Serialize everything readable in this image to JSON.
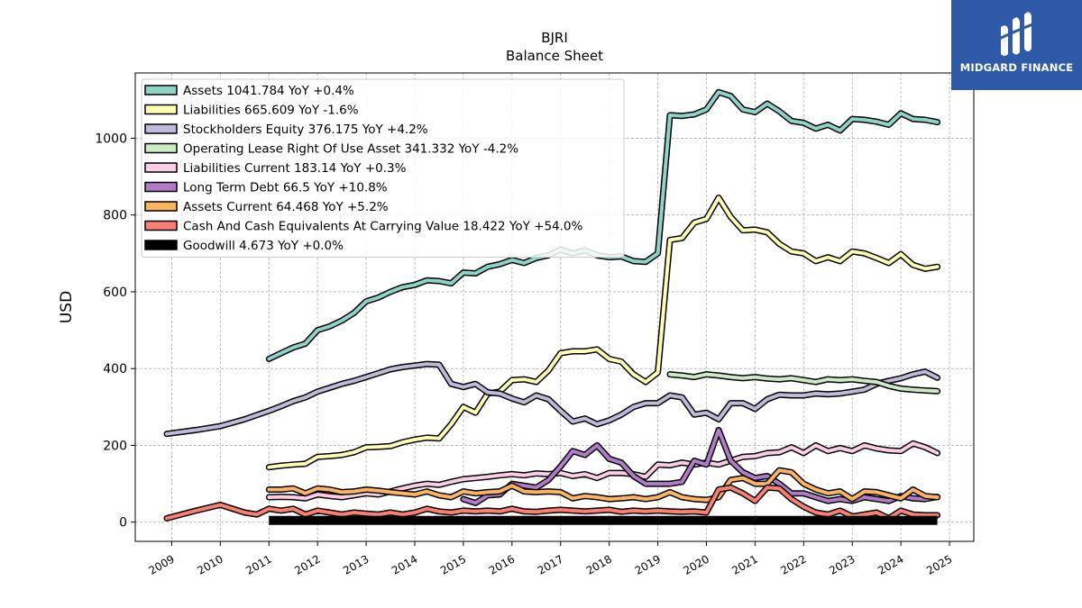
{
  "title": "BJRI",
  "subtitle": "Balance  Sheet",
  "logo_text": "MIDGARD FINANCE",
  "chart_data": {
    "type": "line",
    "title": "BJRI",
    "subtitle": "Balance  Sheet",
    "xlabel": "",
    "ylabel": "USD",
    "xlim": [
      2008.25,
      2025.5
    ],
    "ylim": [
      -50,
      1170
    ],
    "yticks": [
      0,
      200,
      400,
      600,
      800,
      1000
    ],
    "xticks": [
      2009,
      2010,
      2011,
      2012,
      2013,
      2014,
      2015,
      2016,
      2017,
      2018,
      2019,
      2020,
      2021,
      2022,
      2023,
      2024,
      2025
    ],
    "grid": true,
    "legend_position": "top-left",
    "series": [
      {
        "name": "Assets",
        "legend": "Assets  1041.784 YoY +0.4%",
        "color": "#8dd3c7",
        "x": [
          2011.0,
          2011.25,
          2011.5,
          2011.75,
          2012.0,
          2012.25,
          2012.5,
          2012.75,
          2013.0,
          2013.25,
          2013.5,
          2013.75,
          2014.0,
          2014.25,
          2014.5,
          2014.75,
          2015.0,
          2015.25,
          2015.5,
          2015.75,
          2016.0,
          2016.25,
          2016.5,
          2016.75,
          2017.0,
          2017.25,
          2017.5,
          2017.75,
          2018.0,
          2018.25,
          2018.5,
          2018.75,
          2019.0,
          2019.25,
          2019.5,
          2019.75,
          2020.0,
          2020.25,
          2020.5,
          2020.75,
          2021.0,
          2021.25,
          2021.5,
          2021.75,
          2022.0,
          2022.25,
          2022.5,
          2022.75,
          2023.0,
          2023.25,
          2023.5,
          2023.75,
          2024.0,
          2024.25,
          2024.5,
          2024.75
        ],
        "y": [
          425,
          440,
          455,
          465,
          500,
          510,
          525,
          545,
          575,
          585,
          600,
          612,
          618,
          630,
          628,
          622,
          650,
          648,
          665,
          672,
          683,
          675,
          688,
          695,
          710,
          700,
          708,
          695,
          690,
          692,
          680,
          678,
          700,
          1060,
          1058,
          1062,
          1075,
          1120,
          1110,
          1075,
          1068,
          1090,
          1070,
          1045,
          1040,
          1025,
          1035,
          1020,
          1050,
          1048,
          1043,
          1035,
          1065,
          1050,
          1048,
          1042
        ]
      },
      {
        "name": "Liabilities",
        "legend": "Liabilities  665.609 YoY -1.6%",
        "color": "#ffffb3",
        "x": [
          2011.0,
          2011.25,
          2011.5,
          2011.75,
          2012.0,
          2012.25,
          2012.5,
          2012.75,
          2013.0,
          2013.25,
          2013.5,
          2013.75,
          2014.0,
          2014.25,
          2014.5,
          2014.75,
          2015.0,
          2015.25,
          2015.5,
          2015.75,
          2016.0,
          2016.25,
          2016.5,
          2016.75,
          2017.0,
          2017.25,
          2017.5,
          2017.75,
          2018.0,
          2018.25,
          2018.5,
          2018.75,
          2019.0,
          2019.25,
          2019.5,
          2019.75,
          2020.0,
          2020.25,
          2020.5,
          2020.75,
          2021.0,
          2021.25,
          2021.5,
          2021.75,
          2022.0,
          2022.25,
          2022.5,
          2022.75,
          2023.0,
          2023.25,
          2023.5,
          2023.75,
          2024.0,
          2024.25,
          2024.5,
          2024.75
        ],
        "y": [
          143,
          147,
          150,
          152,
          170,
          172,
          175,
          182,
          195,
          196,
          198,
          208,
          215,
          220,
          218,
          255,
          300,
          285,
          335,
          340,
          370,
          372,
          365,
          395,
          440,
          445,
          445,
          450,
          425,
          418,
          385,
          365,
          390,
          735,
          740,
          780,
          790,
          845,
          795,
          760,
          762,
          755,
          725,
          705,
          700,
          680,
          690,
          680,
          705,
          700,
          688,
          675,
          698,
          670,
          660,
          665
        ]
      },
      {
        "name": "Stockholders Equity",
        "legend": "Stockholders Equity  376.175 YoY +4.2%",
        "color": "#bebada",
        "x": [
          2008.9,
          2009.5,
          2010.0,
          2010.5,
          2011.0,
          2011.25,
          2011.5,
          2011.75,
          2012.0,
          2012.25,
          2012.5,
          2012.75,
          2013.0,
          2013.25,
          2013.5,
          2013.75,
          2014.0,
          2014.25,
          2014.5,
          2014.75,
          2015.0,
          2015.25,
          2015.5,
          2015.75,
          2016.0,
          2016.25,
          2016.5,
          2016.75,
          2017.0,
          2017.25,
          2017.5,
          2017.75,
          2018.0,
          2018.25,
          2018.5,
          2018.75,
          2019.0,
          2019.25,
          2019.5,
          2019.75,
          2020.0,
          2020.25,
          2020.5,
          2020.75,
          2021.0,
          2021.25,
          2021.5,
          2021.75,
          2022.0,
          2022.25,
          2022.5,
          2022.75,
          2023.0,
          2023.25,
          2023.5,
          2023.75,
          2024.0,
          2024.25,
          2024.5,
          2024.75
        ],
        "y": [
          230,
          240,
          250,
          268,
          290,
          302,
          315,
          325,
          340,
          350,
          360,
          368,
          378,
          388,
          398,
          404,
          408,
          412,
          410,
          360,
          352,
          360,
          338,
          335,
          322,
          312,
          330,
          320,
          290,
          262,
          270,
          255,
          265,
          280,
          300,
          310,
          310,
          330,
          325,
          280,
          285,
          268,
          310,
          310,
          295,
          320,
          332,
          330,
          330,
          335,
          333,
          335,
          340,
          345,
          360,
          368,
          375,
          385,
          392,
          376
        ]
      },
      {
        "name": "Operating Lease Right Of Use Asset",
        "legend": "Operating Lease Right Of Use Asset  341.332 YoY -4.2%",
        "color": "#ccebc5",
        "x": [
          2019.25,
          2019.5,
          2019.75,
          2020.0,
          2020.25,
          2020.5,
          2020.75,
          2021.0,
          2021.25,
          2021.5,
          2021.75,
          2022.0,
          2022.25,
          2022.5,
          2022.75,
          2023.0,
          2023.25,
          2023.5,
          2023.75,
          2024.0,
          2024.25,
          2024.5,
          2024.75
        ],
        "y": [
          385,
          382,
          378,
          385,
          382,
          378,
          375,
          378,
          374,
          372,
          375,
          370,
          365,
          372,
          370,
          372,
          368,
          365,
          355,
          348,
          345,
          343,
          341
        ]
      },
      {
        "name": "Liabilities Current",
        "legend": "Liabilities Current  183.14 YoY +0.3%",
        "color": "#fccde5",
        "x": [
          2011.0,
          2011.25,
          2011.5,
          2011.75,
          2012.0,
          2012.25,
          2012.5,
          2012.75,
          2013.0,
          2013.25,
          2013.5,
          2013.75,
          2014.0,
          2014.25,
          2014.5,
          2014.75,
          2015.0,
          2015.25,
          2015.5,
          2015.75,
          2016.0,
          2016.25,
          2016.5,
          2016.75,
          2017.0,
          2017.25,
          2017.5,
          2017.75,
          2018.0,
          2018.25,
          2018.5,
          2018.75,
          2019.0,
          2019.25,
          2019.5,
          2019.75,
          2020.0,
          2020.25,
          2020.5,
          2020.75,
          2021.0,
          2021.25,
          2021.5,
          2021.75,
          2022.0,
          2022.25,
          2022.5,
          2022.75,
          2023.0,
          2023.25,
          2023.5,
          2023.75,
          2024.0,
          2024.25,
          2024.5,
          2024.75
        ],
        "y": [
          65,
          66,
          65,
          62,
          72,
          68,
          65,
          70,
          75,
          72,
          80,
          88,
          95,
          100,
          97,
          105,
          112,
          115,
          118,
          122,
          125,
          122,
          127,
          125,
          128,
          120,
          125,
          115,
          128,
          128,
          125,
          118,
          150,
          148,
          155,
          150,
          155,
          150,
          160,
          170,
          172,
          180,
          182,
          195,
          180,
          200,
          185,
          193,
          185,
          200,
          192,
          187,
          185,
          205,
          195,
          180
        ]
      },
      {
        "name": "Long Term Debt",
        "legend": "Long Term Debt  66.5 YoY +10.8%",
        "color": "#b07cc6",
        "x": [
          2015.0,
          2015.25,
          2015.5,
          2015.75,
          2016.0,
          2016.25,
          2016.5,
          2016.75,
          2017.0,
          2017.25,
          2017.5,
          2017.75,
          2018.0,
          2018.25,
          2018.5,
          2018.75,
          2019.0,
          2019.25,
          2019.5,
          2019.75,
          2020.0,
          2020.25,
          2020.5,
          2020.75,
          2021.0,
          2021.25,
          2021.5,
          2021.75,
          2022.0,
          2022.25,
          2022.5,
          2022.75,
          2023.0,
          2023.25,
          2023.5,
          2023.75,
          2024.0,
          2024.25,
          2024.5,
          2024.75
        ],
        "y": [
          60,
          50,
          70,
          72,
          100,
          95,
          90,
          110,
          145,
          185,
          175,
          200,
          165,
          155,
          120,
          100,
          100,
          100,
          105,
          160,
          150,
          240,
          160,
          130,
          115,
          120,
          100,
          75,
          75,
          65,
          55,
          60,
          55,
          65,
          60,
          55,
          68,
          62,
          60,
          66
        ]
      },
      {
        "name": "Assets Current",
        "legend": "Assets Current  64.468 YoY +5.2%",
        "color": "#fdb462",
        "x": [
          2011.0,
          2011.25,
          2011.5,
          2011.75,
          2012.0,
          2012.25,
          2012.5,
          2012.75,
          2013.0,
          2013.25,
          2013.5,
          2013.75,
          2014.0,
          2014.25,
          2014.5,
          2014.75,
          2015.0,
          2015.25,
          2015.5,
          2015.75,
          2016.0,
          2016.25,
          2016.5,
          2016.75,
          2017.0,
          2017.25,
          2017.5,
          2017.75,
          2018.0,
          2018.25,
          2018.5,
          2018.75,
          2019.0,
          2019.25,
          2019.5,
          2019.75,
          2020.0,
          2020.25,
          2020.5,
          2020.75,
          2021.0,
          2021.25,
          2021.5,
          2021.75,
          2022.0,
          2022.25,
          2022.5,
          2022.75,
          2023.0,
          2023.25,
          2023.5,
          2023.75,
          2024.0,
          2024.25,
          2024.5,
          2024.75
        ],
        "y": [
          85,
          85,
          88,
          75,
          88,
          85,
          78,
          80,
          85,
          82,
          78,
          75,
          72,
          80,
          70,
          65,
          80,
          75,
          78,
          80,
          95,
          80,
          78,
          80,
          78,
          62,
          68,
          65,
          60,
          62,
          65,
          60,
          65,
          78,
          65,
          60,
          58,
          65,
          110,
          115,
          100,
          100,
          135,
          130,
          100,
          85,
          75,
          80,
          60,
          80,
          78,
          70,
          62,
          85,
          68,
          65
        ]
      },
      {
        "name": "Cash And Cash Equivalents At Carrying Value",
        "legend": "Cash And Cash Equivalents At Carrying Value  18.422 YoY +54.0%",
        "color": "#fb8072",
        "x": [
          2008.9,
          2009.5,
          2010.0,
          2010.5,
          2010.75,
          2011.0,
          2011.25,
          2011.5,
          2011.75,
          2012.0,
          2012.25,
          2012.5,
          2012.75,
          2013.0,
          2013.25,
          2013.5,
          2013.75,
          2014.0,
          2014.25,
          2014.5,
          2014.75,
          2015.0,
          2015.25,
          2015.5,
          2015.75,
          2016.0,
          2016.25,
          2016.5,
          2016.75,
          2017.0,
          2017.25,
          2017.5,
          2017.75,
          2018.0,
          2018.25,
          2018.5,
          2018.75,
          2019.0,
          2019.25,
          2019.5,
          2019.75,
          2020.0,
          2020.25,
          2020.5,
          2020.75,
          2021.0,
          2021.25,
          2021.5,
          2021.75,
          2022.0,
          2022.25,
          2022.5,
          2022.75,
          2023.0,
          2023.25,
          2023.5,
          2023.75,
          2024.0,
          2024.25,
          2024.5,
          2024.75
        ],
        "y": [
          10,
          30,
          45,
          25,
          20,
          35,
          30,
          35,
          20,
          30,
          25,
          20,
          25,
          22,
          20,
          25,
          20,
          25,
          35,
          28,
          25,
          30,
          28,
          30,
          28,
          35,
          28,
          27,
          30,
          32,
          30,
          28,
          30,
          32,
          27,
          30,
          28,
          30,
          28,
          27,
          28,
          25,
          85,
          90,
          75,
          55,
          90,
          88,
          60,
          40,
          25,
          20,
          30,
          15,
          20,
          25,
          10,
          30,
          20,
          18,
          18
        ]
      },
      {
        "name": "Goodwill",
        "legend": "Goodwill  4.673 YoY +0.0%",
        "color": "#000000",
        "x": [
          2011.0,
          2024.75
        ],
        "y": [
          4.673,
          4.673
        ]
      }
    ]
  }
}
